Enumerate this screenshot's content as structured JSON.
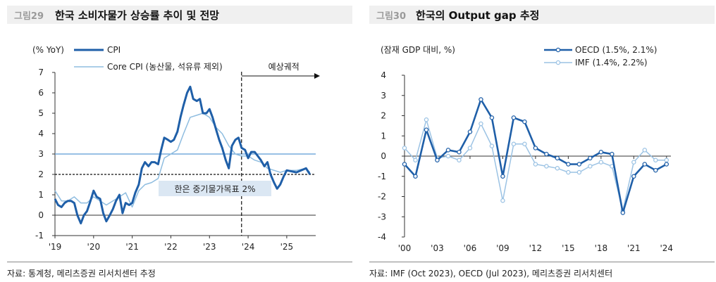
{
  "left": {
    "fig_no": "그림29",
    "title": "한국 소비자물가 상승률 추이 및 전망",
    "source": "자료: 통계청, 메리츠증권 리서치센터 추정",
    "unit_label": "(% YoY)",
    "forecast_label": "예상궤적",
    "target_label": "한은 중기물가목표 2%",
    "colors": {
      "cpi": "#1f5fa8",
      "core": "#8fbde0",
      "hline": "#5b9bd5",
      "target_box": "#dbe7f3"
    }
  },
  "right": {
    "fig_no": "그림30",
    "title": "한국의 Output gap 추정",
    "source": "자료: IMF (Oct 2023), OECD (Jul 2023), 메리츠증권 리서치센터",
    "unit_label": "(잠재 GDP 대비, %)",
    "colors": {
      "oecd": "#1f5fa8",
      "imf": "#9cc3e4"
    }
  },
  "chart_data": [
    {
      "type": "line",
      "title": "한국 소비자물가 상승률 추이 및 전망",
      "ylabel": "(% YoY)",
      "ylim": [
        -1,
        7
      ],
      "yticks": [
        "7",
        "6",
        "5",
        "4",
        "3",
        "2",
        "1",
        "0",
        "-1"
      ],
      "xticks": [
        "'19",
        "'20",
        "'21",
        "'22",
        "'23",
        "'24",
        "'25"
      ],
      "xlim": [
        2019.0,
        2025.75
      ],
      "reference_lines": [
        {
          "y": 3
        },
        {
          "y": 2,
          "style": "dashed"
        }
      ],
      "forecast_start": 2023.83,
      "series": [
        {
          "name": "CPI",
          "x": [
            2019.0,
            2019.08,
            2019.17,
            2019.25,
            2019.33,
            2019.42,
            2019.5,
            2019.58,
            2019.67,
            2019.75,
            2019.83,
            2019.92,
            2020.0,
            2020.08,
            2020.17,
            2020.25,
            2020.33,
            2020.42,
            2020.5,
            2020.58,
            2020.67,
            2020.75,
            2020.83,
            2020.92,
            2021.0,
            2021.08,
            2021.17,
            2021.25,
            2021.33,
            2021.42,
            2021.5,
            2021.58,
            2021.67,
            2021.75,
            2021.83,
            2021.92,
            2022.0,
            2022.08,
            2022.17,
            2022.25,
            2022.33,
            2022.42,
            2022.5,
            2022.58,
            2022.67,
            2022.75,
            2022.83,
            2022.92,
            2023.0,
            2023.08,
            2023.17,
            2023.25,
            2023.33,
            2023.42,
            2023.5,
            2023.58,
            2023.67,
            2023.75,
            2023.83,
            2023.92,
            2024.0,
            2024.08,
            2024.17,
            2024.25,
            2024.33,
            2024.42,
            2024.5,
            2024.58,
            2024.67,
            2024.75,
            2024.83,
            2024.92,
            2025.0,
            2025.25,
            2025.5,
            2025.6
          ],
          "values": [
            0.8,
            0.5,
            0.4,
            0.6,
            0.7,
            0.7,
            0.6,
            0.0,
            -0.4,
            0.0,
            0.2,
            0.7,
            1.2,
            0.9,
            0.8,
            0.1,
            -0.3,
            0.0,
            0.3,
            0.7,
            1.0,
            0.1,
            0.6,
            0.5,
            0.6,
            1.1,
            1.5,
            2.3,
            2.6,
            2.4,
            2.6,
            2.6,
            2.5,
            3.2,
            3.8,
            3.7,
            3.6,
            3.7,
            4.1,
            4.8,
            5.4,
            6.0,
            6.3,
            5.7,
            5.6,
            5.7,
            5.0,
            5.0,
            5.2,
            4.8,
            4.2,
            3.7,
            3.3,
            2.7,
            2.3,
            3.4,
            3.7,
            3.8,
            3.3,
            3.2,
            2.8,
            3.1,
            3.1,
            2.9,
            2.7,
            2.4,
            2.6,
            2.0,
            1.6,
            1.3,
            1.5,
            1.9,
            2.2,
            2.1,
            2.3,
            2.0
          ]
        },
        {
          "name": "Core CPI (농산물, 석유류 제외)",
          "x": [
            2019.0,
            2019.17,
            2019.33,
            2019.5,
            2019.67,
            2019.83,
            2020.0,
            2020.17,
            2020.33,
            2020.5,
            2020.67,
            2020.83,
            2021.0,
            2021.17,
            2021.33,
            2021.5,
            2021.67,
            2021.83,
            2022.0,
            2022.17,
            2022.33,
            2022.5,
            2022.67,
            2022.83,
            2023.0,
            2023.17,
            2023.33,
            2023.5,
            2023.67,
            2023.83,
            2024.0,
            2024.17,
            2024.33,
            2024.5,
            2024.67,
            2024.83,
            2025.0,
            2025.25,
            2025.5,
            2025.6
          ],
          "values": [
            1.2,
            0.7,
            0.7,
            0.9,
            0.6,
            0.6,
            0.9,
            0.7,
            0.5,
            0.7,
            0.9,
            1.1,
            0.4,
            1.2,
            1.5,
            1.6,
            1.8,
            2.8,
            3.0,
            3.2,
            4.0,
            4.8,
            4.9,
            5.0,
            4.8,
            4.3,
            4.0,
            3.4,
            3.0,
            2.9,
            2.9,
            2.7,
            2.6,
            2.3,
            2.2,
            2.1,
            2.2,
            2.2,
            2.3,
            2.1
          ]
        }
      ]
    },
    {
      "type": "line",
      "title": "한국의 Output gap 추정",
      "ylabel": "(잠재 GDP 대비, %)",
      "ylim": [
        -4,
        4
      ],
      "yticks": [
        "4",
        "3",
        "2",
        "1",
        "0",
        "-1",
        "-2",
        "-3",
        "-4"
      ],
      "xticks": [
        "'00",
        "'03",
        "'06",
        "'09",
        "'12",
        "'15",
        "'18",
        "'21",
        "'24"
      ],
      "x": [
        2000,
        2001,
        2002,
        2003,
        2004,
        2005,
        2006,
        2007,
        2008,
        2009,
        2010,
        2011,
        2012,
        2013,
        2014,
        2015,
        2016,
        2017,
        2018,
        2019,
        2020,
        2021,
        2022,
        2023,
        2024
      ],
      "series": [
        {
          "name": "OECD (1.5%, 2.1%)",
          "values": [
            -0.4,
            -1.0,
            1.3,
            -0.2,
            0.3,
            0.2,
            1.2,
            2.8,
            1.9,
            -1.0,
            1.9,
            1.7,
            0.4,
            0.1,
            -0.1,
            -0.4,
            -0.4,
            -0.1,
            0.2,
            0.1,
            -2.8,
            -1.0,
            -0.4,
            -0.7,
            -0.4
          ]
        },
        {
          "name": "IMF (1.4%, 2.2%)",
          "values": [
            0.4,
            -0.2,
            1.8,
            -0.1,
            0.0,
            -0.2,
            0.4,
            1.6,
            0.5,
            -2.2,
            0.6,
            0.6,
            -0.4,
            -0.5,
            -0.6,
            -0.8,
            -0.8,
            -0.5,
            -0.3,
            -0.5,
            -2.7,
            -0.3,
            0.3,
            -0.2,
            -0.2
          ]
        }
      ]
    }
  ]
}
